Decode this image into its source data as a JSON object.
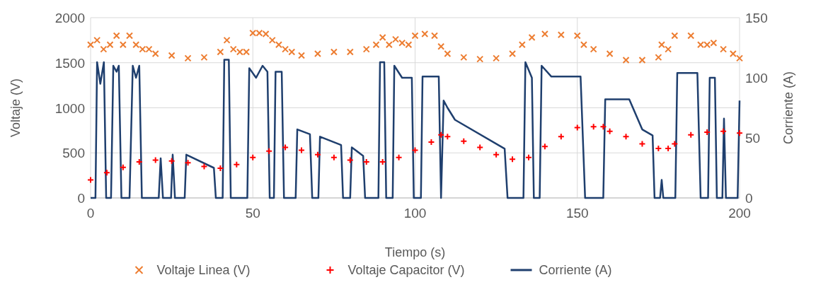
{
  "chart_data": {
    "type": "scatter",
    "xlabel": "Tiempo (s)",
    "ylabel": "Voltaje (V)",
    "y2label": "Corriente (A)",
    "xlim": [
      0,
      200
    ],
    "xticks": [
      0,
      50,
      100,
      150,
      200
    ],
    "ylim": [
      0,
      2000
    ],
    "yticks": [
      0,
      500,
      1000,
      1500,
      2000
    ],
    "y2lim": [
      0,
      150
    ],
    "y2ticks": [
      0,
      50,
      100,
      150
    ],
    "grid": true,
    "legend": "bottom",
    "series": [
      {
        "name": "Voltaje Linea (V)",
        "marker": "cross",
        "color": "#ed7d31",
        "x": [
          0,
          2,
          4,
          6,
          8,
          10,
          12,
          14,
          16,
          18,
          20,
          25,
          30,
          35,
          40,
          42,
          44,
          46,
          48,
          50,
          52,
          54,
          56,
          58,
          60,
          62,
          65,
          70,
          75,
          80,
          85,
          88,
          90,
          92,
          94,
          96,
          98,
          100,
          103,
          106,
          108,
          110,
          115,
          120,
          125,
          130,
          133,
          136,
          140,
          145,
          150,
          152,
          155,
          160,
          165,
          170,
          175,
          176,
          178,
          180,
          185,
          188,
          190,
          192,
          195,
          198,
          200
        ],
        "values": [
          1700,
          1750,
          1650,
          1700,
          1800,
          1700,
          1800,
          1700,
          1650,
          1650,
          1600,
          1580,
          1550,
          1560,
          1620,
          1750,
          1650,
          1620,
          1620,
          1830,
          1830,
          1820,
          1750,
          1700,
          1650,
          1620,
          1580,
          1600,
          1620,
          1620,
          1650,
          1700,
          1780,
          1700,
          1760,
          1720,
          1700,
          1800,
          1820,
          1800,
          1680,
          1600,
          1560,
          1540,
          1550,
          1600,
          1700,
          1780,
          1820,
          1810,
          1800,
          1700,
          1650,
          1600,
          1530,
          1530,
          1560,
          1700,
          1650,
          1800,
          1800,
          1700,
          1700,
          1720,
          1650,
          1600,
          1550
        ]
      },
      {
        "name": "Voltaje Capacitor (V)",
        "marker": "plus",
        "color": "#ff0000",
        "x": [
          0,
          5,
          10,
          15,
          20,
          25,
          30,
          35,
          40,
          45,
          50,
          55,
          60,
          65,
          70,
          75,
          80,
          85,
          90,
          95,
          100,
          105,
          108,
          110,
          115,
          120,
          125,
          130,
          135,
          140,
          145,
          150,
          155,
          158,
          160,
          165,
          170,
          175,
          178,
          180,
          185,
          190,
          195,
          200
        ],
        "values": [
          200,
          280,
          340,
          400,
          420,
          410,
          390,
          350,
          330,
          370,
          450,
          520,
          560,
          530,
          480,
          450,
          420,
          400,
          400,
          450,
          530,
          620,
          700,
          680,
          630,
          560,
          480,
          430,
          450,
          570,
          680,
          780,
          790,
          790,
          740,
          680,
          600,
          550,
          550,
          600,
          700,
          730,
          740,
          720
        ]
      },
      {
        "name": "Corriente (A)",
        "type": "line",
        "axis": "y2",
        "color": "#1f3f6e",
        "x": [
          0,
          1.5,
          2,
          3,
          4.1,
          4.8,
          6.3,
          7,
          8,
          8.7,
          9.5,
          12,
          13,
          14,
          15,
          15.8,
          21,
          21.6,
          22.3,
          24.8,
          25.3,
          26,
          29,
          29.5,
          38,
          38.6,
          40.7,
          41.2,
          42.6,
          43.2,
          48.3,
          48.9,
          51,
          53,
          54.5,
          55.2,
          56.5,
          57,
          58.9,
          59.6,
          63.2,
          63.7,
          67.6,
          68.3,
          70.2,
          70.7,
          77.2,
          77.8,
          80,
          80.5,
          84,
          84.6,
          88.7,
          89.2,
          90.5,
          91.1,
          93.1,
          93.6,
          96,
          99,
          99.6,
          101.8,
          102.3,
          107.3,
          108,
          108.8,
          110,
          112.3,
          127.6,
          128.5,
          133.4,
          134,
          136,
          136.6,
          138.4,
          139,
          142,
          151,
          152.4,
          158,
          158.6,
          166,
          170,
          173.2,
          173.8,
          175.5,
          176,
          176.5,
          180.2,
          180.8,
          187,
          188,
          190.3,
          190.8,
          192.4,
          193,
          194.7,
          195.2,
          195.8,
          199.4,
          200
        ],
        "values": [
          0,
          0,
          113,
          95,
          113,
          0,
          0,
          110,
          105,
          110,
          0,
          0,
          110,
          100,
          110,
          0,
          0,
          33,
          0,
          0,
          36,
          0,
          0,
          36,
          25,
          0,
          0,
          115,
          115,
          0,
          0,
          108,
          100,
          110,
          105,
          0,
          0,
          105,
          105,
          0,
          0,
          57,
          53,
          0,
          0,
          51,
          44,
          0,
          0,
          42,
          35,
          0,
          0,
          113,
          113,
          0,
          0,
          110,
          100,
          100,
          0,
          0,
          101,
          101,
          0,
          81,
          75,
          65,
          41,
          0,
          0,
          113,
          100,
          0,
          0,
          110,
          101,
          101,
          0,
          0,
          82,
          82,
          57,
          52,
          0,
          0,
          15,
          0,
          0,
          104,
          104,
          0,
          0,
          100,
          100,
          0,
          0,
          66,
          0,
          0,
          81
        ]
      }
    ]
  }
}
